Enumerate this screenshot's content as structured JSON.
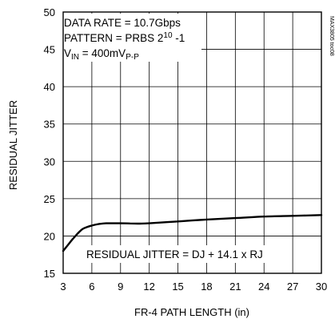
{
  "chart_data": {
    "type": "line",
    "xlabel": "FR-4 PATH LENGTH (in)",
    "ylabel": "RESIDUAL JITTER",
    "xlim": [
      3,
      30
    ],
    "ylim": [
      15,
      50
    ],
    "xticks": [
      "3",
      "6",
      "9",
      "12",
      "15",
      "18",
      "21",
      "24",
      "27",
      "30"
    ],
    "yticks": [
      "15",
      "20",
      "25",
      "30",
      "35",
      "40",
      "45",
      "50"
    ],
    "grid": true,
    "series": [
      {
        "x": [
          3,
          3.5,
          4,
          4.5,
          5,
          5.5,
          6,
          6.5,
          7,
          7.5,
          8,
          9,
          10,
          11,
          12,
          15,
          18,
          21,
          24,
          27,
          30
        ],
        "y": [
          18.0,
          18.8,
          19.6,
          20.3,
          20.9,
          21.2,
          21.4,
          21.55,
          21.65,
          21.7,
          21.7,
          21.7,
          21.68,
          21.66,
          21.7,
          21.95,
          22.2,
          22.4,
          22.6,
          22.7,
          22.8
        ]
      }
    ],
    "annotations": {
      "line1": "DATA RATE = 10.7Gbps",
      "line2_text": "PATTERN = PRBS 2",
      "line2_sup": "10",
      "line2_tail": " -1",
      "line3_v": "V",
      "line3_v_sub": "IN",
      "line3_mid": " = 400mV",
      "line3_sub": "P-P",
      "formula": "RESIDUAL JITTER = DJ + 14.1 x RJ",
      "figure_id": "MAX3805 toc08"
    },
    "colors": {
      "line": "#000000",
      "grid": "#000000",
      "background": "#ffffff"
    }
  }
}
